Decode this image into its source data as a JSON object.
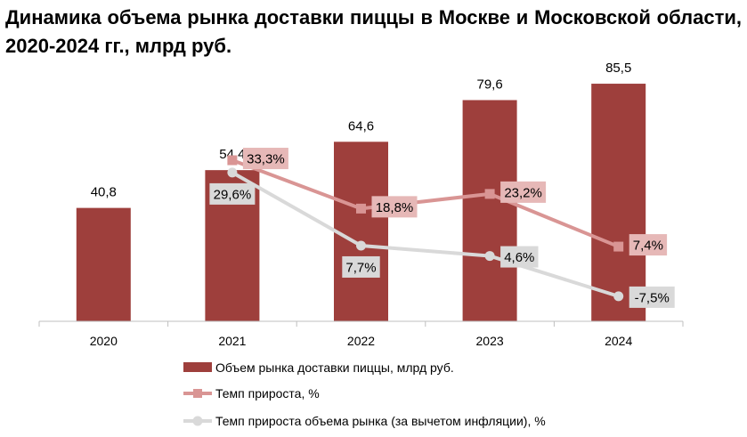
{
  "chart_data": {
    "type": "bar",
    "title": "Динамика объема рынка доставки пиццы в Москве и Московской области, 2020-2024 гг., млрд руб.",
    "categories": [
      "2020",
      "2021",
      "2022",
      "2023",
      "2024"
    ],
    "series": [
      {
        "name": "Объем рынка доставки пиццы, млрд руб.",
        "type": "bar",
        "values": [
          40.8,
          54.4,
          64.6,
          79.6,
          85.5
        ],
        "labels": [
          "40,8",
          "54,4",
          "64,6",
          "79,6",
          "85,5"
        ],
        "color": "#9e3f3c"
      },
      {
        "name": "Темп прироста, %",
        "type": "line",
        "marker": "square",
        "values": [
          null,
          33.3,
          18.8,
          23.2,
          7.4
        ],
        "labels": [
          null,
          "33,3%",
          "18,8%",
          "23,2%",
          "7,4%"
        ],
        "color": "#d99594",
        "label_bg": "#e6b8b7"
      },
      {
        "name": "Темп прироста объема рынка (за вычетом инфляции), %",
        "type": "line",
        "marker": "circle",
        "values": [
          null,
          29.6,
          7.7,
          4.6,
          -7.5
        ],
        "labels": [
          null,
          "29,6%",
          "7,7%",
          "4,6%",
          "-7,5%"
        ],
        "color": "#d9d9d9",
        "label_bg": "#d9d9d9"
      }
    ],
    "ylim_bars": [
      0,
      90
    ],
    "ylim_lines": [
      -15,
      60
    ],
    "grid": false,
    "legend_position": "bottom"
  }
}
